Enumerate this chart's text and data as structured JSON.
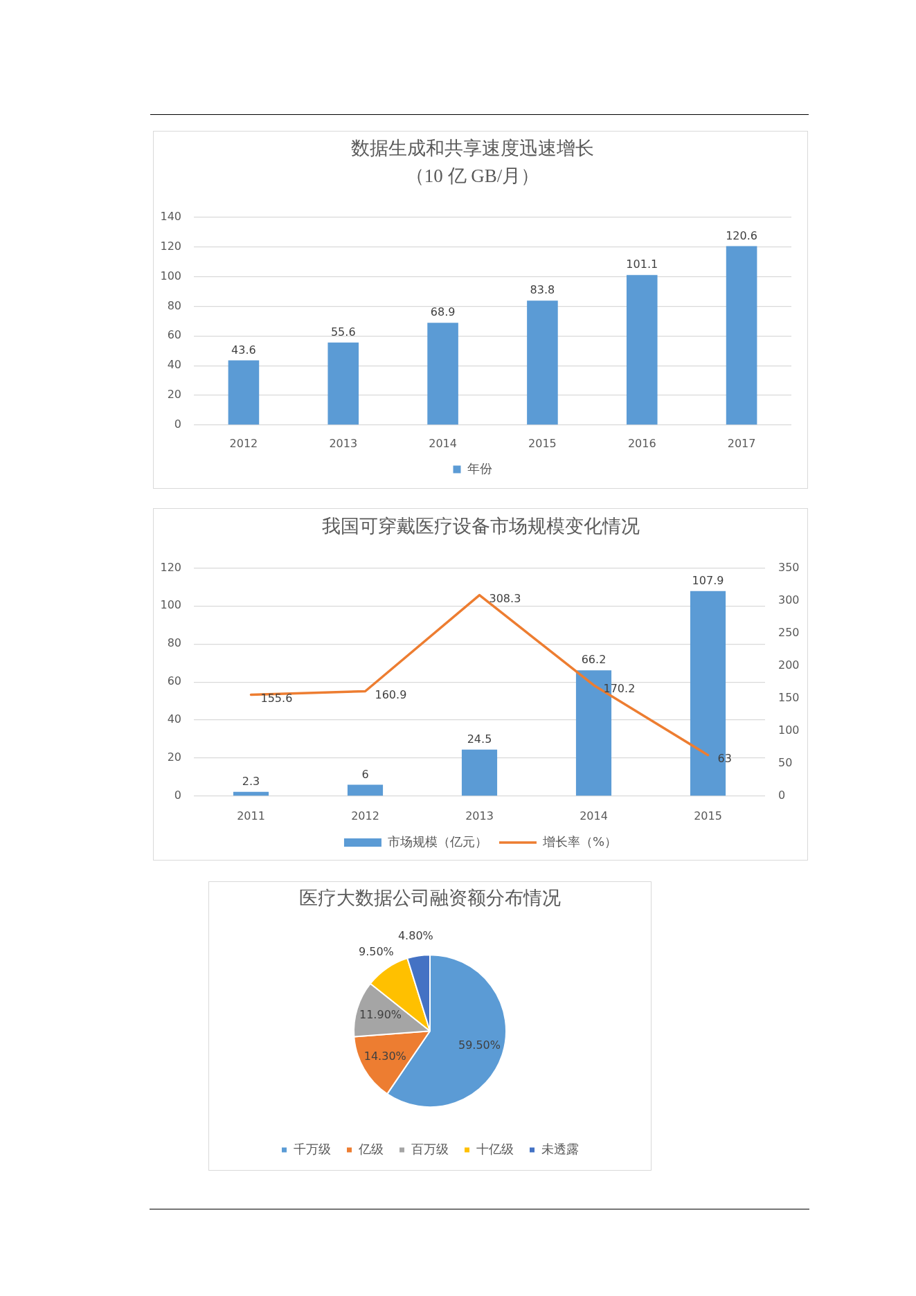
{
  "chart_data": [
    {
      "type": "bar",
      "title": "数据生成和共享速度迅速增长",
      "subtitle": "（10 亿 GB/月）",
      "categories": [
        "2012",
        "2013",
        "2014",
        "2015",
        "2016",
        "2017"
      ],
      "series": [
        {
          "name": "年份",
          "color": "#5b9bd5",
          "values": [
            43.6,
            55.6,
            68.9,
            83.8,
            101.1,
            120.6
          ]
        }
      ],
      "ylim": [
        0,
        140
      ],
      "yticks": [
        0,
        20,
        40,
        60,
        80,
        100,
        120,
        140
      ],
      "grid": "y",
      "legend": "bottom",
      "data_labels": true
    },
    {
      "type": "bar",
      "title": "我国可穿戴医疗设备市场规模变化情况",
      "categories": [
        "2011",
        "2012",
        "2013",
        "2014",
        "2015"
      ],
      "series": [
        {
          "name": "市场规模（亿元）",
          "type": "bar",
          "color": "#5b9bd5",
          "values": [
            2.3,
            6,
            24.5,
            66.2,
            107.9
          ]
        },
        {
          "name": "增长率（%）",
          "type": "line",
          "axis": "y2",
          "color": "#ed7d31",
          "values": [
            155.6,
            160.9,
            308.3,
            170.2,
            63
          ]
        }
      ],
      "ylim": [
        0,
        120
      ],
      "yticks": [
        0,
        20,
        40,
        60,
        80,
        100,
        120
      ],
      "y2lim": [
        0,
        350
      ],
      "y2ticks": [
        0,
        50,
        100,
        150,
        200,
        250,
        300,
        350
      ],
      "grid": "y",
      "legend": "bottom",
      "data_labels": true
    },
    {
      "type": "pie",
      "title": "医疗大数据公司融资额分布情况",
      "categories": [
        "千万级",
        "亿级",
        "百万级",
        "十亿级",
        "未透露"
      ],
      "values": [
        59.5,
        14.3,
        11.9,
        9.5,
        4.8
      ],
      "colors": [
        "#5b9bd5",
        "#ed7d31",
        "#a5a5a5",
        "#ffc000",
        "#4472c4"
      ],
      "value_labels": [
        "59.50%",
        "14.30%",
        "11.90%",
        "9.50%",
        "4.80%"
      ],
      "legend": "bottom"
    }
  ]
}
